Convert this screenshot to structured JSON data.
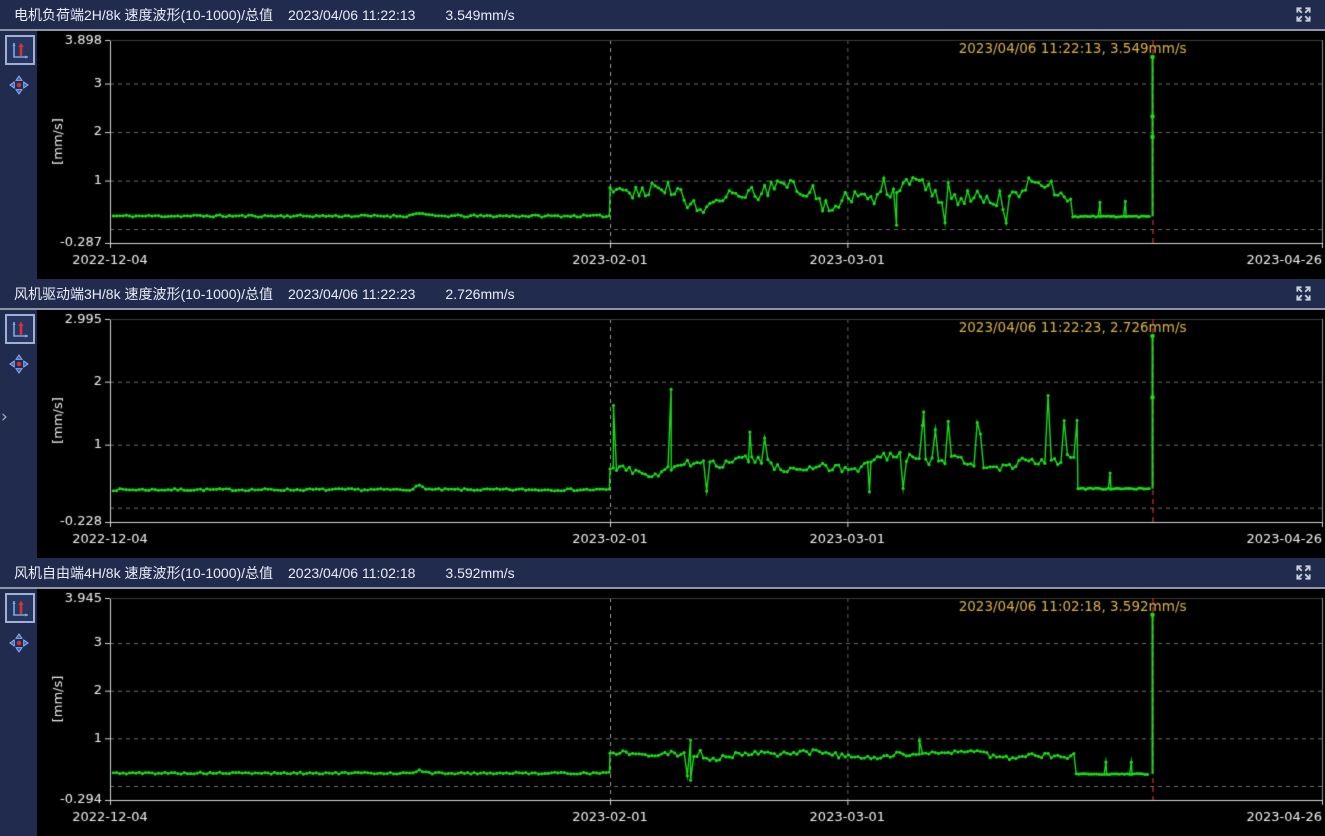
{
  "colors": {
    "series": "#17e017",
    "cursor_line": "#d93030",
    "annotation": "#d9b542",
    "axis": "#d4d4d4",
    "axis_right": "#8f8f8f",
    "grid": "#6e6e6e",
    "label": "#efefef",
    "header_bg": "#202b4e",
    "plot_bg": "#000000"
  },
  "icons": {
    "expand": "expand-fullscreen-arrows",
    "axis_reset": "axis-autoscale",
    "pan": "four-way-pan",
    "sidebar_chevron": "›"
  },
  "chart_data": [
    {
      "type": "scatter-line",
      "title": "电机负荷端2H/8k 速度波形(10-1000)/总值",
      "time": "2023/04/06 11:22:13",
      "value": "3.549mm/s",
      "annotation": "2023/04/06 11:22:13, 3.549mm/s",
      "ylabel": "[mm/s]",
      "ymin": -0.287,
      "ymax": 3.898,
      "ymin_label": "-0.287",
      "ymax_label": "3.898",
      "yticks": [
        1,
        2,
        3
      ],
      "grid_y": [
        0,
        1,
        2,
        3
      ],
      "days": 143,
      "xticks": [
        {
          "label": "2022-12-04",
          "day": 0
        },
        {
          "label": "2023-02-01",
          "day": 59
        },
        {
          "label": "2023-03-01",
          "day": 87
        },
        {
          "label": "2023-04-26",
          "day": 143
        }
      ],
      "vlines": [
        {
          "day": 59,
          "color": "#98a0ae"
        },
        {
          "day": 87,
          "color": "#5a616c"
        }
      ],
      "cursor": {
        "day": 123,
        "value": 3.549,
        "dots": [
          3.549,
          2.32,
          1.9
        ]
      },
      "gen": {
        "seed": 11,
        "step": 0.38,
        "baseline": 0.27,
        "bnoise": 0.045,
        "bump_day": 36.5,
        "bump_h": 0.07,
        "jump_day": 59,
        "drop_day": 113.6,
        "band": {
          "mean": 0.72,
          "trend": 0,
          "a1": 0.17,
          "p1": 16,
          "ph1": 0.3,
          "a2": 0.12,
          "p2": 7.2,
          "ph2": 1.9,
          "noise": 0.28,
          "spike_prob": 0.025,
          "spike_prob_late": 0.05,
          "late_day": 95,
          "spike_min": 0.15,
          "spike_var": 0.35,
          "dip_prob": 0.008,
          "dip_val": 0.12
        },
        "tail": 0.26,
        "tailnoise": 0.03,
        "stems": [
          [
            92.8,
            0.08
          ],
          [
            116.8,
            0.55
          ],
          [
            119.8,
            0.57
          ]
        ]
      }
    },
    {
      "type": "scatter-line",
      "title": "风机驱动端3H/8k 速度波形(10-1000)/总值",
      "time": "2023/04/06 11:22:23",
      "value": "2.726mm/s",
      "annotation": "2023/04/06 11:22:23, 2.726mm/s",
      "ylabel": "[mm/s]",
      "ymin": -0.228,
      "ymax": 2.995,
      "ymin_label": "-0.228",
      "ymax_label": "2.995",
      "yticks": [
        1,
        2
      ],
      "grid_y": [
        0,
        1,
        2
      ],
      "days": 143,
      "xticks": [
        {
          "label": "2022-12-04",
          "day": 0
        },
        {
          "label": "2023-02-01",
          "day": 59
        },
        {
          "label": "2023-03-01",
          "day": 87
        },
        {
          "label": "2023-04-26",
          "day": 143
        }
      ],
      "vlines": [
        {
          "day": 59,
          "color": "#98a0ae"
        },
        {
          "day": 87,
          "color": "#5a616c"
        }
      ],
      "cursor": {
        "day": 123,
        "value": 2.726,
        "dots": [
          2.726,
          1.75
        ]
      },
      "gen": {
        "seed": 7,
        "step": 0.38,
        "baseline": 0.285,
        "bnoise": 0.035,
        "bump_day": 36.5,
        "bump_h": 0.06,
        "jump_day": 59,
        "drop_day": 114.2,
        "band": {
          "mean": 0.63,
          "trend": 0.0022,
          "a1": 0.09,
          "p1": 21,
          "ph1": 3.6,
          "a2": 0.05,
          "p2": 8,
          "ph2": 0.8,
          "noise": 0.13,
          "spike_prob": 0.035,
          "spike_prob_late": 0.11,
          "late_day": 95,
          "spike_min": 0.3,
          "spike_var": 0.75,
          "dip_prob": 0.004,
          "dip_val": 0.25
        },
        "tail": 0.3,
        "tailnoise": 0.025,
        "stems": [
          [
            59.4,
            1.62
          ],
          [
            66.2,
            1.88
          ],
          [
            75.5,
            1.2
          ],
          [
            89.6,
            0.25
          ],
          [
            96,
            1.52
          ],
          [
            118,
            0.55
          ]
        ]
      }
    },
    {
      "type": "scatter-line",
      "title": "风机自由端4H/8k 速度波形(10-1000)/总值",
      "time": "2023/04/06 11:02:18",
      "value": "3.592mm/s",
      "annotation": "2023/04/06 11:02:18, 3.592mm/s",
      "ylabel": "[mm/s]",
      "ymin": -0.294,
      "ymax": 3.945,
      "ymin_label": "-0.294",
      "ymax_label": "3.945",
      "yticks": [
        1,
        2,
        3
      ],
      "grid_y": [
        0,
        1,
        2,
        3
      ],
      "days": 143,
      "xticks": [
        {
          "label": "2022-12-04",
          "day": 0
        },
        {
          "label": "2023-02-01",
          "day": 59
        },
        {
          "label": "2023-03-01",
          "day": 87
        },
        {
          "label": "2023-04-26",
          "day": 143
        }
      ],
      "vlines": [
        {
          "day": 59,
          "color": "#98a0ae"
        },
        {
          "day": 87,
          "color": "#5a616c"
        }
      ],
      "cursor": {
        "day": 123,
        "value": 3.592,
        "dots": [
          3.592
        ]
      },
      "gen": {
        "seed": 5,
        "step": 0.38,
        "baseline": 0.27,
        "bnoise": 0.04,
        "bump_day": 36.5,
        "bump_h": 0.05,
        "jump_day": 59,
        "drop_day": 114,
        "band": {
          "mean": 0.66,
          "trend": 0,
          "a1": 0.05,
          "p1": 19,
          "ph1": 0.9,
          "a2": 0.03,
          "p2": 8.5,
          "ph2": 2.2,
          "noise": 0.11,
          "spike_prob": 0.008,
          "spike_prob_late": 0.02,
          "late_day": 95,
          "spike_min": 0.1,
          "spike_var": 0.25,
          "dip_prob": 0.006,
          "dip_val": 0.18
        },
        "tail": 0.25,
        "tailnoise": 0.025,
        "stems": [
          [
            68.5,
            0.12
          ],
          [
            95.5,
            0.95
          ],
          [
            117.5,
            0.5
          ],
          [
            120.5,
            0.5
          ]
        ]
      }
    }
  ]
}
